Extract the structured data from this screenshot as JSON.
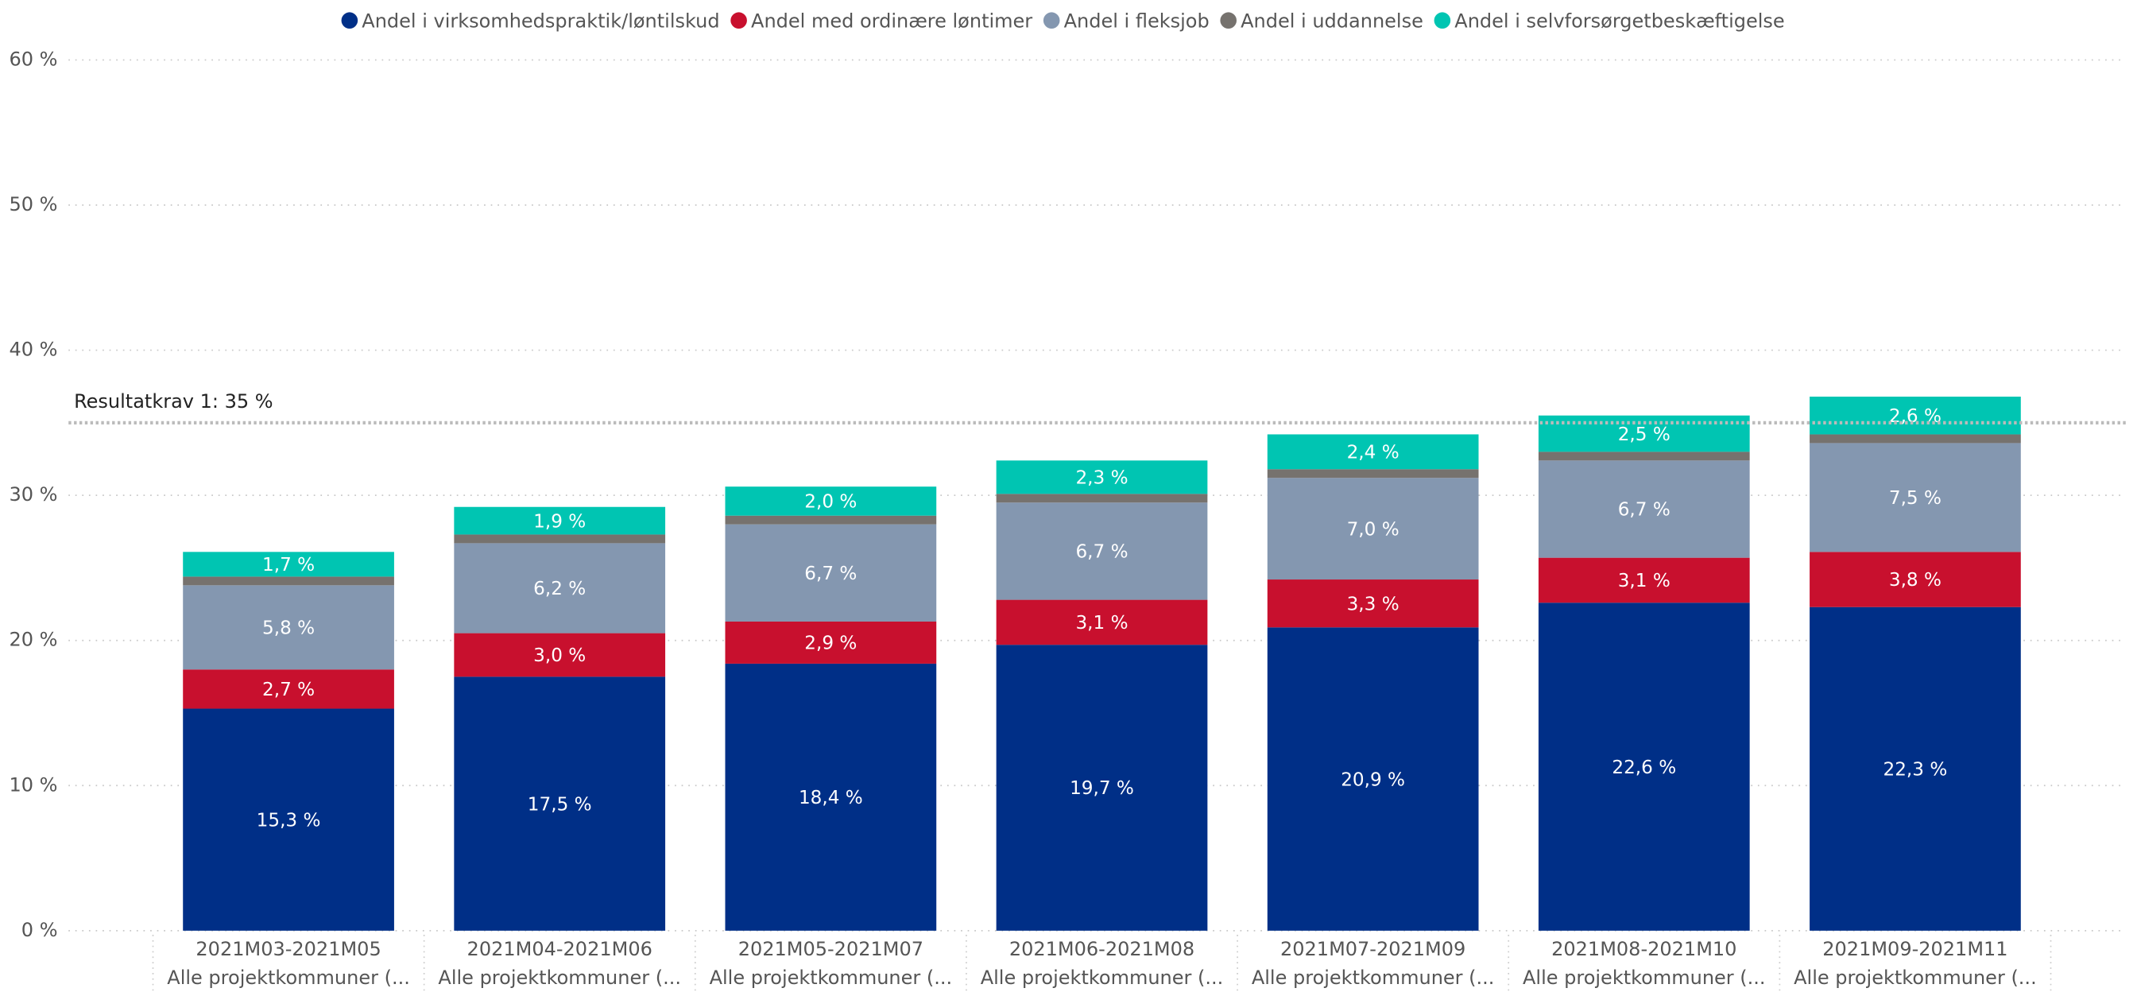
{
  "chart_data": {
    "type": "stacked_bar",
    "categories": [
      [
        "2021M03-2021M05",
        "Alle projektkommuner (..."
      ],
      [
        "2021M04-2021M06",
        "Alle projektkommuner (..."
      ],
      [
        "2021M05-2021M07",
        "Alle projektkommuner (..."
      ],
      [
        "2021M06-2021M08",
        "Alle projektkommuner (..."
      ],
      [
        "2021M07-2021M09",
        "Alle projektkommuner (..."
      ],
      [
        "2021M08-2021M10",
        "Alle projektkommuner (..."
      ],
      [
        "2021M09-2021M11",
        "Alle projektkommuner (..."
      ]
    ],
    "series": [
      {
        "name": "Andel i virksomhedspraktik/løntilskud",
        "color": "#002f87",
        "values": [
          15.3,
          17.5,
          18.4,
          19.7,
          20.9,
          22.6,
          22.3
        ],
        "value_labels": [
          "15,3 %",
          "17,5 %",
          "18,4 %",
          "19,7 %",
          "20,9 %",
          "22,6 %",
          "22,3 %"
        ]
      },
      {
        "name": "Andel med ordinære løntimer",
        "color": "#c8102e",
        "values": [
          2.7,
          3.0,
          2.9,
          3.1,
          3.3,
          3.1,
          3.8
        ],
        "value_labels": [
          "2,7 %",
          "3,0 %",
          "2,9 %",
          "3,1 %",
          "3,3 %",
          "3,1 %",
          "3,8 %"
        ]
      },
      {
        "name": "Andel i fleksjob",
        "color": "#8497b0",
        "values": [
          5.8,
          6.2,
          6.7,
          6.7,
          7.0,
          6.7,
          7.5
        ],
        "value_labels": [
          "5,8 %",
          "6,2 %",
          "6,7 %",
          "6,7 %",
          "7,0 %",
          "6,7 %",
          "7,5 %"
        ]
      },
      {
        "name": "Andel i uddannelse",
        "color": "#76726e",
        "values": [
          0.6,
          0.6,
          0.6,
          0.6,
          0.6,
          0.6,
          0.6
        ]
      },
      {
        "name": "Andel i selvforsørgetbeskæftigelse",
        "color": "#00c5b2",
        "values": [
          1.7,
          1.9,
          2.0,
          2.3,
          2.4,
          2.5,
          2.6
        ],
        "value_labels": [
          "1,7 %",
          "1,9 %",
          "2,0 %",
          "2,3 %",
          "2,4 %",
          "2,5 %",
          "2,6 %"
        ]
      }
    ],
    "ylim": [
      0,
      60
    ],
    "yticks": [
      {
        "value": 0,
        "label": "0 %"
      },
      {
        "value": 10,
        "label": "10 %"
      },
      {
        "value": 20,
        "label": "20 %"
      },
      {
        "value": 30,
        "label": "30 %"
      },
      {
        "value": 40,
        "label": "40 %"
      },
      {
        "value": 50,
        "label": "50 %"
      },
      {
        "value": 60,
        "label": "60 %"
      }
    ],
    "grid": true,
    "legend": "top",
    "reference_line": {
      "value": 35,
      "label": "Resultatkrav 1: 35 %"
    }
  }
}
